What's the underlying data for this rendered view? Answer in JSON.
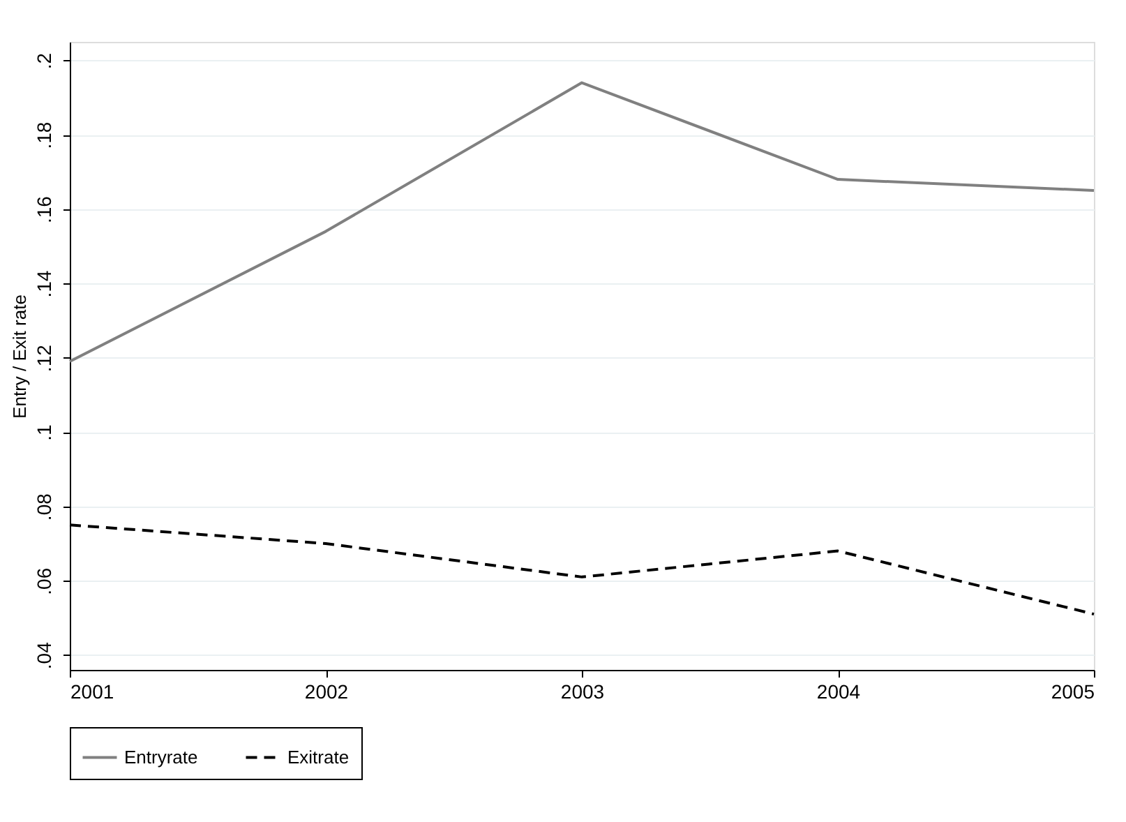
{
  "chart_data": {
    "type": "line",
    "ylabel": "Entry / Exit rate",
    "x": [
      2001,
      2002,
      2003,
      2004,
      2005
    ],
    "series": [
      {
        "name": "Entryrate",
        "color": "#808080",
        "line_style": "solid",
        "values": [
          0.119,
          0.154,
          0.194,
          0.168,
          0.165
        ]
      },
      {
        "name": "Exitrate",
        "color": "#000000",
        "line_style": "dashed",
        "values": [
          0.075,
          0.07,
          0.061,
          0.068,
          0.051
        ]
      }
    ],
    "xlim": [
      2001,
      2005
    ],
    "xticks": [
      2001,
      2002,
      2003,
      2004,
      2005
    ],
    "ylim": [
      0.036,
      0.205
    ],
    "yticks": [
      {
        "value": 0.04,
        "label": ".04"
      },
      {
        "value": 0.06,
        "label": ".06"
      },
      {
        "value": 0.08,
        "label": ".08"
      },
      {
        "value": 0.1,
        "label": ".1"
      },
      {
        "value": 0.12,
        "label": ".12"
      },
      {
        "value": 0.14,
        "label": ".14"
      },
      {
        "value": 0.16,
        "label": ".16"
      },
      {
        "value": 0.18,
        "label": ".18"
      },
      {
        "value": 0.2,
        "label": ".2"
      }
    ],
    "grid": "y",
    "legend": "bottom",
    "marker": "none"
  }
}
